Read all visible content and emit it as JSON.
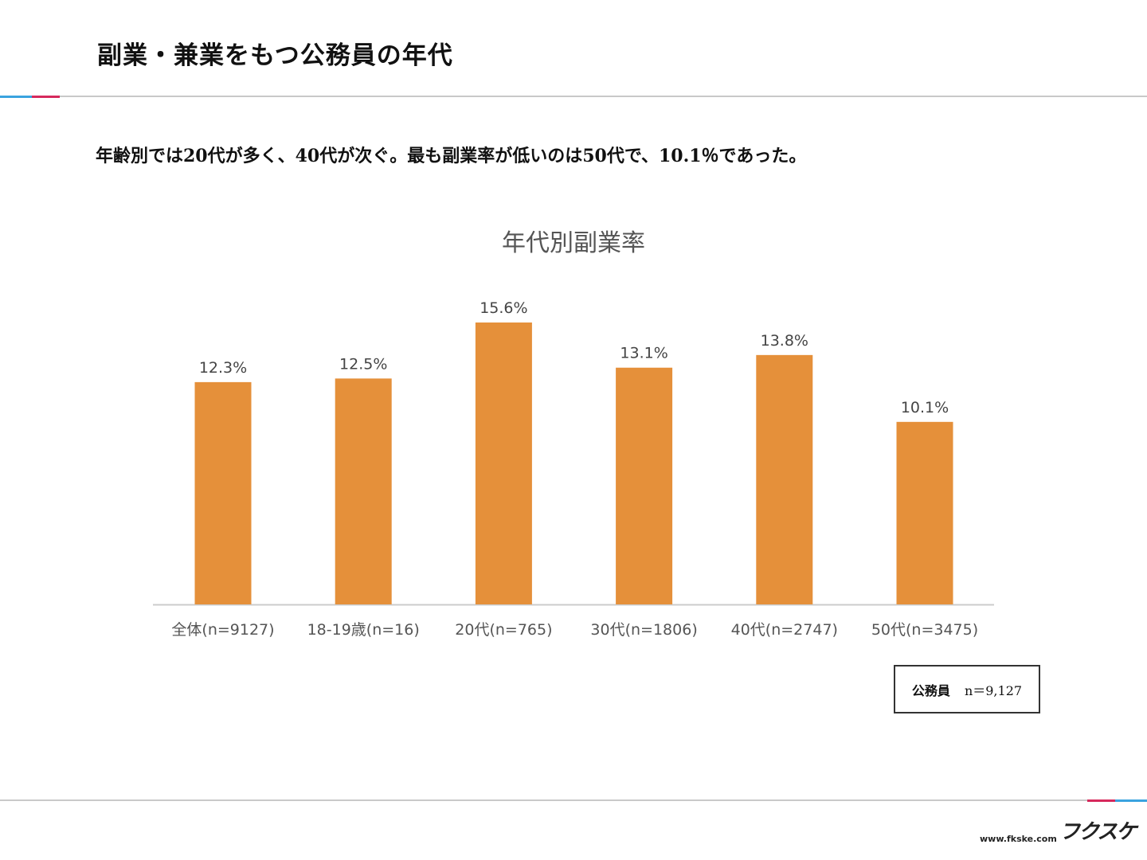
{
  "page": {
    "title": "副業・兼業をもつ公務員の年代",
    "summary": "年齢別では20代が多く、40代が次ぐ。最も副業率が低いのは50代で、10.1％であった。"
  },
  "legend": {
    "label": "公務員",
    "value": "n＝9,127"
  },
  "footer": {
    "url": "www.fkske.com",
    "logo": "フクスケ"
  },
  "colors": {
    "bar": "#e5903a",
    "axis": "#cccccc",
    "accent_blue": "#3aa3df",
    "accent_red": "#d6295c"
  },
  "chart_data": {
    "type": "bar",
    "title": "年代別副業率",
    "categories": [
      "全体(n=9127)",
      "18-19歳(n=16)",
      "20代(n=765)",
      "30代(n=1806)",
      "40代(n=2747)",
      "50代(n=3475)"
    ],
    "values": [
      12.3,
      12.5,
      15.6,
      13.1,
      13.8,
      10.1
    ],
    "value_labels": [
      "12.3%",
      "12.5%",
      "15.6%",
      "13.1%",
      "13.8%",
      "10.1%"
    ],
    "xlabel": "",
    "ylabel": "",
    "ylim": [
      0,
      18
    ],
    "grid": false
  }
}
